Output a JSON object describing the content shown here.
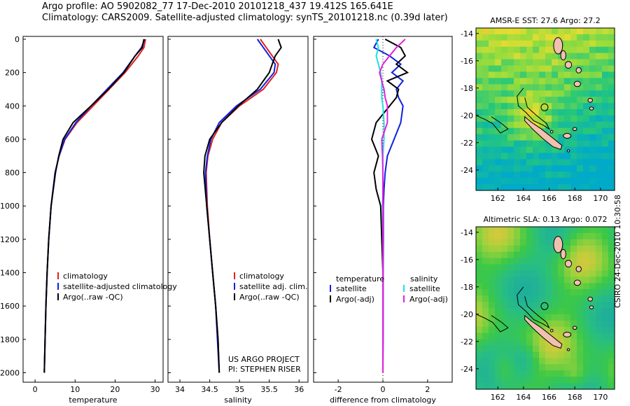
{
  "header": {
    "line1": "Argo profile: AO 5902082_77 17-Dec-2010 20101218_437 19.412S 165.641E",
    "line2": "Climatology: CARS2009. Satellite-adjusted climatology: synTS_20101218.nc (0.39d later)"
  },
  "colors": {
    "climatology": "#e02020",
    "satellite": "#1020e0",
    "argo": "#000000",
    "sal_sat": "#20e0e0",
    "sal_argo": "#e020e0",
    "land": "#f0c0b0"
  },
  "chart_data": [
    {
      "type": "line",
      "xlabel": "temperature",
      "xlim": [
        -3,
        32
      ],
      "ylim": [
        2040,
        0
      ],
      "xticks": [
        "0",
        "10",
        "20",
        "30"
      ],
      "yticks": [
        "0",
        "200",
        "400",
        "600",
        "800",
        "1000",
        "1200",
        "1400",
        "1600",
        "1800",
        "2000"
      ],
      "depth": [
        0,
        50,
        100,
        200,
        300,
        400,
        500,
        600,
        700,
        800,
        1000,
        1200,
        1400,
        1600,
        1800,
        2000
      ],
      "series": [
        {
          "name": "climatology",
          "values": [
            27.6,
            27.2,
            25.8,
            22.5,
            18.5,
            14.5,
            10.5,
            7.5,
            6.0,
            5.0,
            4.0,
            3.4,
            3.0,
            2.7,
            2.5,
            2.3
          ]
        },
        {
          "name": "satellite-adjusted climatology",
          "values": [
            27.4,
            26.6,
            25.0,
            22.0,
            18.0,
            14.0,
            10.2,
            7.4,
            6.0,
            5.0,
            4.0,
            3.4,
            3.0,
            2.7,
            2.5,
            2.3
          ]
        },
        {
          "name": "Argo(..raw -QC)",
          "values": [
            27.2,
            26.8,
            25.0,
            22.2,
            18.3,
            14.0,
            9.5,
            7.0,
            5.9,
            5.1,
            4.0,
            3.4,
            3.0,
            2.7,
            2.5,
            2.3
          ]
        }
      ],
      "legend": [
        "climatology",
        "satellite-adjusted climatology",
        "Argo(..raw -QC)"
      ]
    },
    {
      "type": "line",
      "xlabel": "salinity",
      "xlim": [
        33.8,
        36.15
      ],
      "ylim": [
        2040,
        0
      ],
      "xticks": [
        "34",
        "34.5",
        "35",
        "35.5",
        "36"
      ],
      "depth": [
        0,
        50,
        100,
        150,
        200,
        300,
        400,
        500,
        600,
        700,
        800,
        1000,
        1200,
        1400,
        1600,
        1800,
        2000
      ],
      "series": [
        {
          "name": "climatology",
          "values": [
            35.35,
            35.45,
            35.55,
            35.65,
            35.62,
            35.4,
            35.0,
            34.7,
            34.55,
            34.47,
            34.44,
            34.46,
            34.5,
            34.55,
            34.6,
            34.64,
            34.66
          ]
        },
        {
          "name": "satellite adj. clim.",
          "values": [
            35.3,
            35.4,
            35.5,
            35.6,
            35.58,
            35.35,
            34.95,
            34.66,
            34.52,
            34.46,
            34.43,
            34.45,
            34.5,
            34.55,
            34.6,
            34.63,
            34.66
          ]
        },
        {
          "name": "Argo(..raw -QC)",
          "values": [
            35.65,
            35.7,
            35.6,
            35.55,
            35.5,
            35.3,
            34.98,
            34.7,
            34.5,
            34.42,
            34.4,
            34.45,
            34.5,
            34.55,
            34.6,
            34.64,
            34.66
          ]
        }
      ],
      "legend": [
        "climatology",
        "satellite adj. clim.",
        "Argo(..raw -QC)"
      ],
      "annotation": [
        "US ARGO PROJECT",
        "PI: STEPHEN RISER"
      ]
    },
    {
      "type": "line",
      "xlabel": "difference from climatology",
      "xlim": [
        -3.1,
        3.1
      ],
      "ylim": [
        2040,
        0
      ],
      "xticks": [
        "-2",
        "0",
        "2"
      ],
      "depth": [
        0,
        50,
        100,
        150,
        200,
        250,
        300,
        350,
        400,
        500,
        600,
        700,
        800,
        900,
        1000,
        1200,
        1400,
        1600,
        1800,
        2000
      ],
      "series": [
        {
          "name": "temperature satellite",
          "values": [
            -0.2,
            -0.4,
            0.3,
            0.8,
            0.4,
            0.9,
            0.6,
            0.7,
            0.9,
            0.8,
            0.5,
            0.2,
            0.1,
            0.05,
            0.02,
            0.02,
            0.01,
            0.01,
            0.01,
            0.0
          ]
        },
        {
          "name": "temperature Argo(-adj)",
          "values": [
            0.1,
            0.8,
            1.0,
            0.6,
            1.1,
            0.2,
            0.7,
            0.6,
            0.3,
            -0.3,
            -0.5,
            -0.2,
            -0.4,
            -0.3,
            -0.1,
            -0.05,
            0.0,
            0.0,
            0.0,
            0.0
          ]
        },
        {
          "name": "salinity satellite",
          "values": [
            -0.3,
            -0.2,
            -0.3,
            -0.2,
            -0.1,
            -0.05,
            -0.05,
            -0.05,
            0.0,
            0.05,
            0.05,
            0.0,
            0.0,
            0.0,
            -0.02,
            0.0,
            0.0,
            0.0,
            0.0,
            0.0
          ]
        },
        {
          "name": "salinity Argo(-adj)",
          "values": [
            1.0,
            0.6,
            0.3,
            0.0,
            -0.15,
            -0.05,
            0.05,
            0.1,
            0.2,
            0.2,
            -0.05,
            -0.02,
            0.0,
            0.0,
            0.0,
            0.0,
            0.0,
            0.0,
            0.0,
            0.0
          ]
        }
      ],
      "legend_headers": [
        "temperature",
        "salinity"
      ],
      "legend": [
        "satellite",
        "Argo(-adj)",
        "satellite",
        "Argo(-adj)"
      ]
    },
    {
      "type": "heatmap",
      "title": "AMSR-E SST: 27.6 Argo: 27.2",
      "xticks": [
        "162",
        "164",
        "166",
        "168",
        "170"
      ],
      "yticks": [
        "-14",
        "-16",
        "-18",
        "-20",
        "-22",
        "-24"
      ],
      "xlim": [
        160.3,
        171.1
      ],
      "ylim": [
        -25.5,
        -13.6
      ]
    },
    {
      "type": "heatmap",
      "title": "Altimetric SLA: 0.13 Argo: 0.072",
      "xticks": [
        "162",
        "164",
        "166",
        "168",
        "170"
      ],
      "yticks": [
        "-14",
        "-16",
        "-18",
        "-20",
        "-22",
        "-24"
      ],
      "xlim": [
        160.3,
        171.1
      ],
      "ylim": [
        -25.5,
        -13.6
      ]
    }
  ],
  "side_label": "CSIRO 24-Dec-2010 10:30:58"
}
